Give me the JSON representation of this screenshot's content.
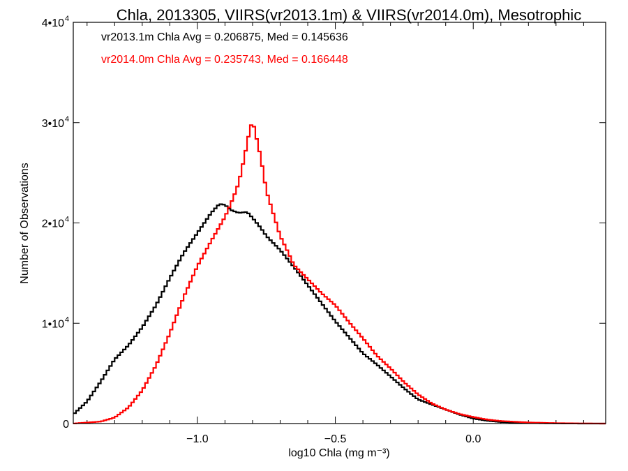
{
  "chart_data": {
    "type": "histogram-step",
    "title": "Chla, 2013305, VIIRS(vr2013.1m) & VIIRS(vr2014.0m), Mesotrophic",
    "xlabel": "log10 Chla (mg m⁻³)",
    "ylabel": "Number of Observations",
    "xlim": [
      -1.45,
      0.48
    ],
    "ylim": [
      0,
      40000
    ],
    "x_ticks": [
      {
        "value": -1.0,
        "label": "−1.0"
      },
      {
        "value": -0.5,
        "label": "−0.5"
      },
      {
        "value": 0.0,
        "label": "0.0"
      }
    ],
    "y_ticks": [
      {
        "value": 0,
        "label": "0"
      },
      {
        "value": 10000,
        "label": "1•10",
        "sup": "4"
      },
      {
        "value": 20000,
        "label": "2•10",
        "sup": "4"
      },
      {
        "value": 30000,
        "label": "3•10",
        "sup": "4"
      },
      {
        "value": 40000,
        "label": "4•10",
        "sup": "4"
      }
    ],
    "annotations": [
      {
        "text": "vr2013.1m Chla Avg = 0.206875, Med = 0.145636",
        "color": "#000000"
      },
      {
        "text": "vr2014.0m Chla Avg = 0.235743, Med = 0.166448",
        "color": "#ff0000"
      }
    ],
    "series": [
      {
        "color": "#000000",
        "points": [
          [
            -1.45,
            900
          ],
          [
            -1.4,
            2200
          ],
          [
            -1.35,
            4200
          ],
          [
            -1.3,
            6400
          ],
          [
            -1.25,
            7800
          ],
          [
            -1.2,
            9600
          ],
          [
            -1.15,
            11800
          ],
          [
            -1.1,
            14500
          ],
          [
            -1.05,
            17000
          ],
          [
            -1.0,
            19000
          ],
          [
            -0.95,
            21000
          ],
          [
            -0.92,
            21900
          ],
          [
            -0.9,
            21800
          ],
          [
            -0.88,
            21300
          ],
          [
            -0.85,
            21000
          ],
          [
            -0.82,
            21100
          ],
          [
            -0.8,
            20500
          ],
          [
            -0.77,
            19500
          ],
          [
            -0.75,
            18700
          ],
          [
            -0.7,
            17300
          ],
          [
            -0.65,
            15600
          ],
          [
            -0.6,
            13800
          ],
          [
            -0.55,
            12000
          ],
          [
            -0.5,
            10200
          ],
          [
            -0.45,
            8600
          ],
          [
            -0.4,
            7000
          ],
          [
            -0.35,
            5900
          ],
          [
            -0.3,
            4700
          ],
          [
            -0.25,
            3500
          ],
          [
            -0.2,
            2400
          ],
          [
            -0.15,
            1900
          ],
          [
            -0.1,
            1400
          ],
          [
            -0.05,
            900
          ],
          [
            0.0,
            500
          ],
          [
            0.05,
            280
          ],
          [
            0.1,
            150
          ],
          [
            0.2,
            50
          ],
          [
            0.3,
            15
          ],
          [
            0.4,
            0
          ],
          [
            0.48,
            0
          ]
        ]
      },
      {
        "color": "#ff0000",
        "points": [
          [
            -1.45,
            0
          ],
          [
            -1.35,
            200
          ],
          [
            -1.3,
            600
          ],
          [
            -1.25,
            1600
          ],
          [
            -1.2,
            3300
          ],
          [
            -1.15,
            5800
          ],
          [
            -1.1,
            9000
          ],
          [
            -1.05,
            12600
          ],
          [
            -1.0,
            15700
          ],
          [
            -0.95,
            18200
          ],
          [
            -0.9,
            20600
          ],
          [
            -0.87,
            22500
          ],
          [
            -0.85,
            24000
          ],
          [
            -0.83,
            26500
          ],
          [
            -0.81,
            29300
          ],
          [
            -0.8,
            30200
          ],
          [
            -0.79,
            29000
          ],
          [
            -0.77,
            26500
          ],
          [
            -0.75,
            23200
          ],
          [
            -0.72,
            20500
          ],
          [
            -0.7,
            18700
          ],
          [
            -0.67,
            17000
          ],
          [
            -0.65,
            15800
          ],
          [
            -0.6,
            14400
          ],
          [
            -0.55,
            13000
          ],
          [
            -0.5,
            11800
          ],
          [
            -0.45,
            10100
          ],
          [
            -0.4,
            8500
          ],
          [
            -0.35,
            6800
          ],
          [
            -0.3,
            5500
          ],
          [
            -0.25,
            4100
          ],
          [
            -0.2,
            2900
          ],
          [
            -0.15,
            2000
          ],
          [
            -0.1,
            1400
          ],
          [
            -0.05,
            950
          ],
          [
            0.0,
            650
          ],
          [
            0.05,
            400
          ],
          [
            0.1,
            250
          ],
          [
            0.2,
            110
          ],
          [
            0.3,
            40
          ],
          [
            0.4,
            10
          ],
          [
            0.48,
            0
          ]
        ]
      }
    ]
  }
}
